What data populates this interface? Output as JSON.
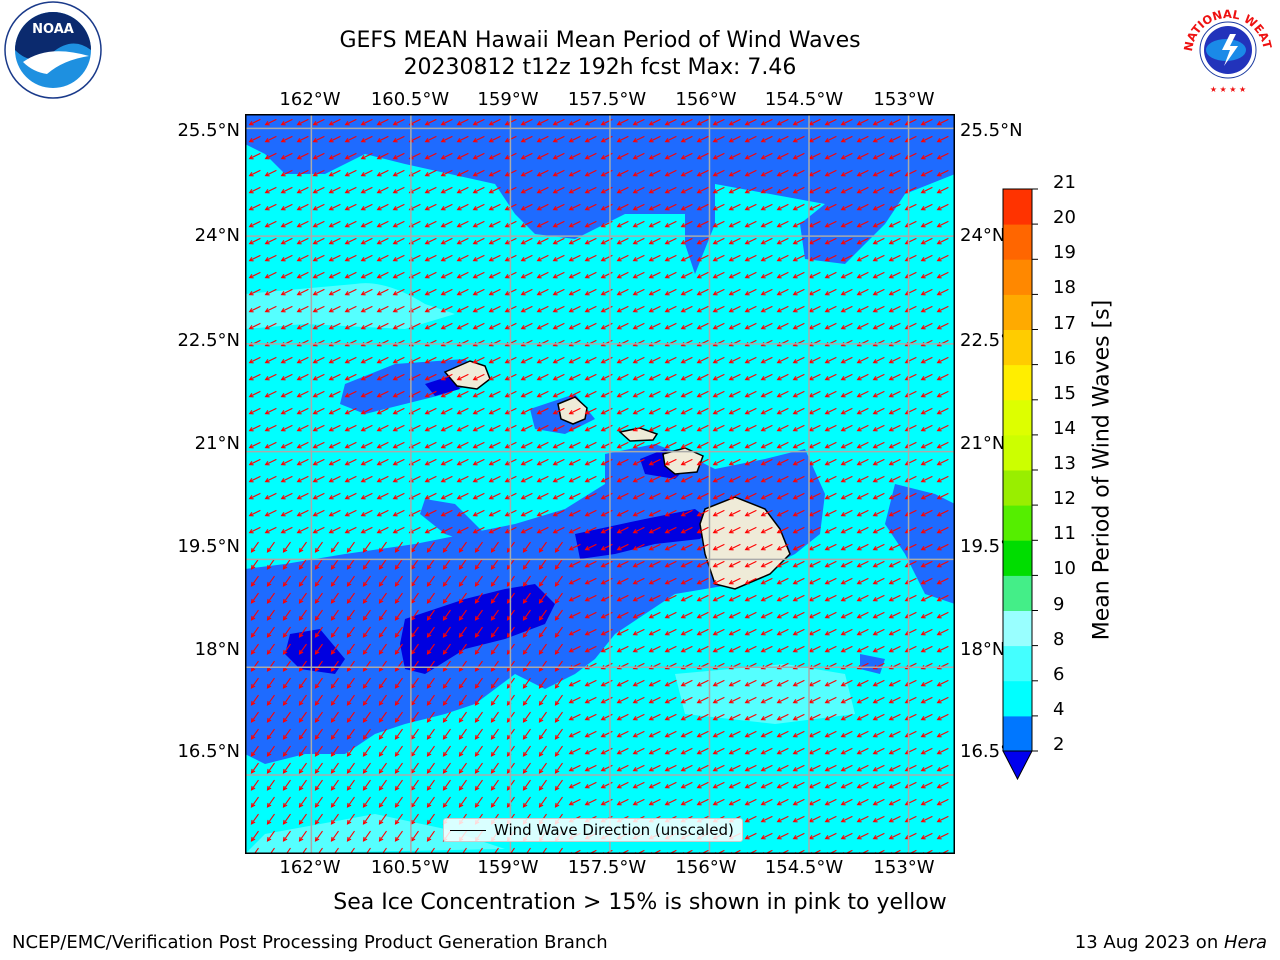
{
  "header": {
    "title_line1": "GEFS MEAN Hawaii Mean Period of Wind Waves",
    "title_line2": "20230812 t12z 192h fcst   Max: 7.46"
  },
  "logos": {
    "left": {
      "name": "noaa-logo",
      "text": "NOAA",
      "ring_text": "NATIONAL OCEANIC AND ATMOSPHERIC ADMINISTRATION · U.S. DEPARTMENT OF COMMERCE"
    },
    "right": {
      "name": "nws-logo",
      "ring_text": "NATIONAL WEATHER SERVICE"
    }
  },
  "map": {
    "lon_ticks": [
      "162°W",
      "160.5°W",
      "159°W",
      "157.5°W",
      "156°W",
      "154.5°W",
      "153°W"
    ],
    "lat_ticks": [
      "25.5°N",
      "24°N",
      "22.5°N",
      "21°N",
      "19.5°N",
      "18°N",
      "16.5°N"
    ],
    "lon_values": [
      -162,
      -160.5,
      -159,
      -157.5,
      -156,
      -154.5,
      -153
    ],
    "lat_values": [
      25.5,
      24,
      22.5,
      21,
      19.5,
      18,
      16.5
    ],
    "lon_range": [
      -163.0,
      -152.3
    ],
    "lat_range": [
      15.4,
      25.7
    ],
    "legend_label": "Wind Wave Direction (unscaled)",
    "arrow_color": "#ff0000",
    "land_color": "#efebd8",
    "grid": true
  },
  "colorbar": {
    "label": "Mean Period of Wind Waves [s]",
    "ticks": [
      "2",
      "4",
      "6",
      "8",
      "9",
      "10",
      "11",
      "12",
      "13",
      "14",
      "15",
      "16",
      "17",
      "18",
      "19",
      "20",
      "21"
    ],
    "levels": [
      2,
      4,
      6,
      8,
      9,
      10,
      11,
      12,
      13,
      14,
      15,
      16,
      17,
      18,
      19,
      20,
      21
    ],
    "colors": [
      "#0077ff",
      "#00ffff",
      "#44ffff",
      "#99ffff",
      "#44ee88",
      "#00dd00",
      "#55ee00",
      "#99ee00",
      "#ccff00",
      "#ddff00",
      "#ffee00",
      "#ffcc00",
      "#ffaa00",
      "#ff8800",
      "#ff6600",
      "#ff3300",
      "#ff0000"
    ],
    "extend_min_color": "#0000ee"
  },
  "note": "Sea Ice Concentration > 15% is shown in pink to yellow",
  "footer": {
    "left": "NCEP/EMC/Verification Post Processing Product Generation Branch",
    "right_date": "13 Aug 2023 on ",
    "right_machine": "Hera"
  }
}
